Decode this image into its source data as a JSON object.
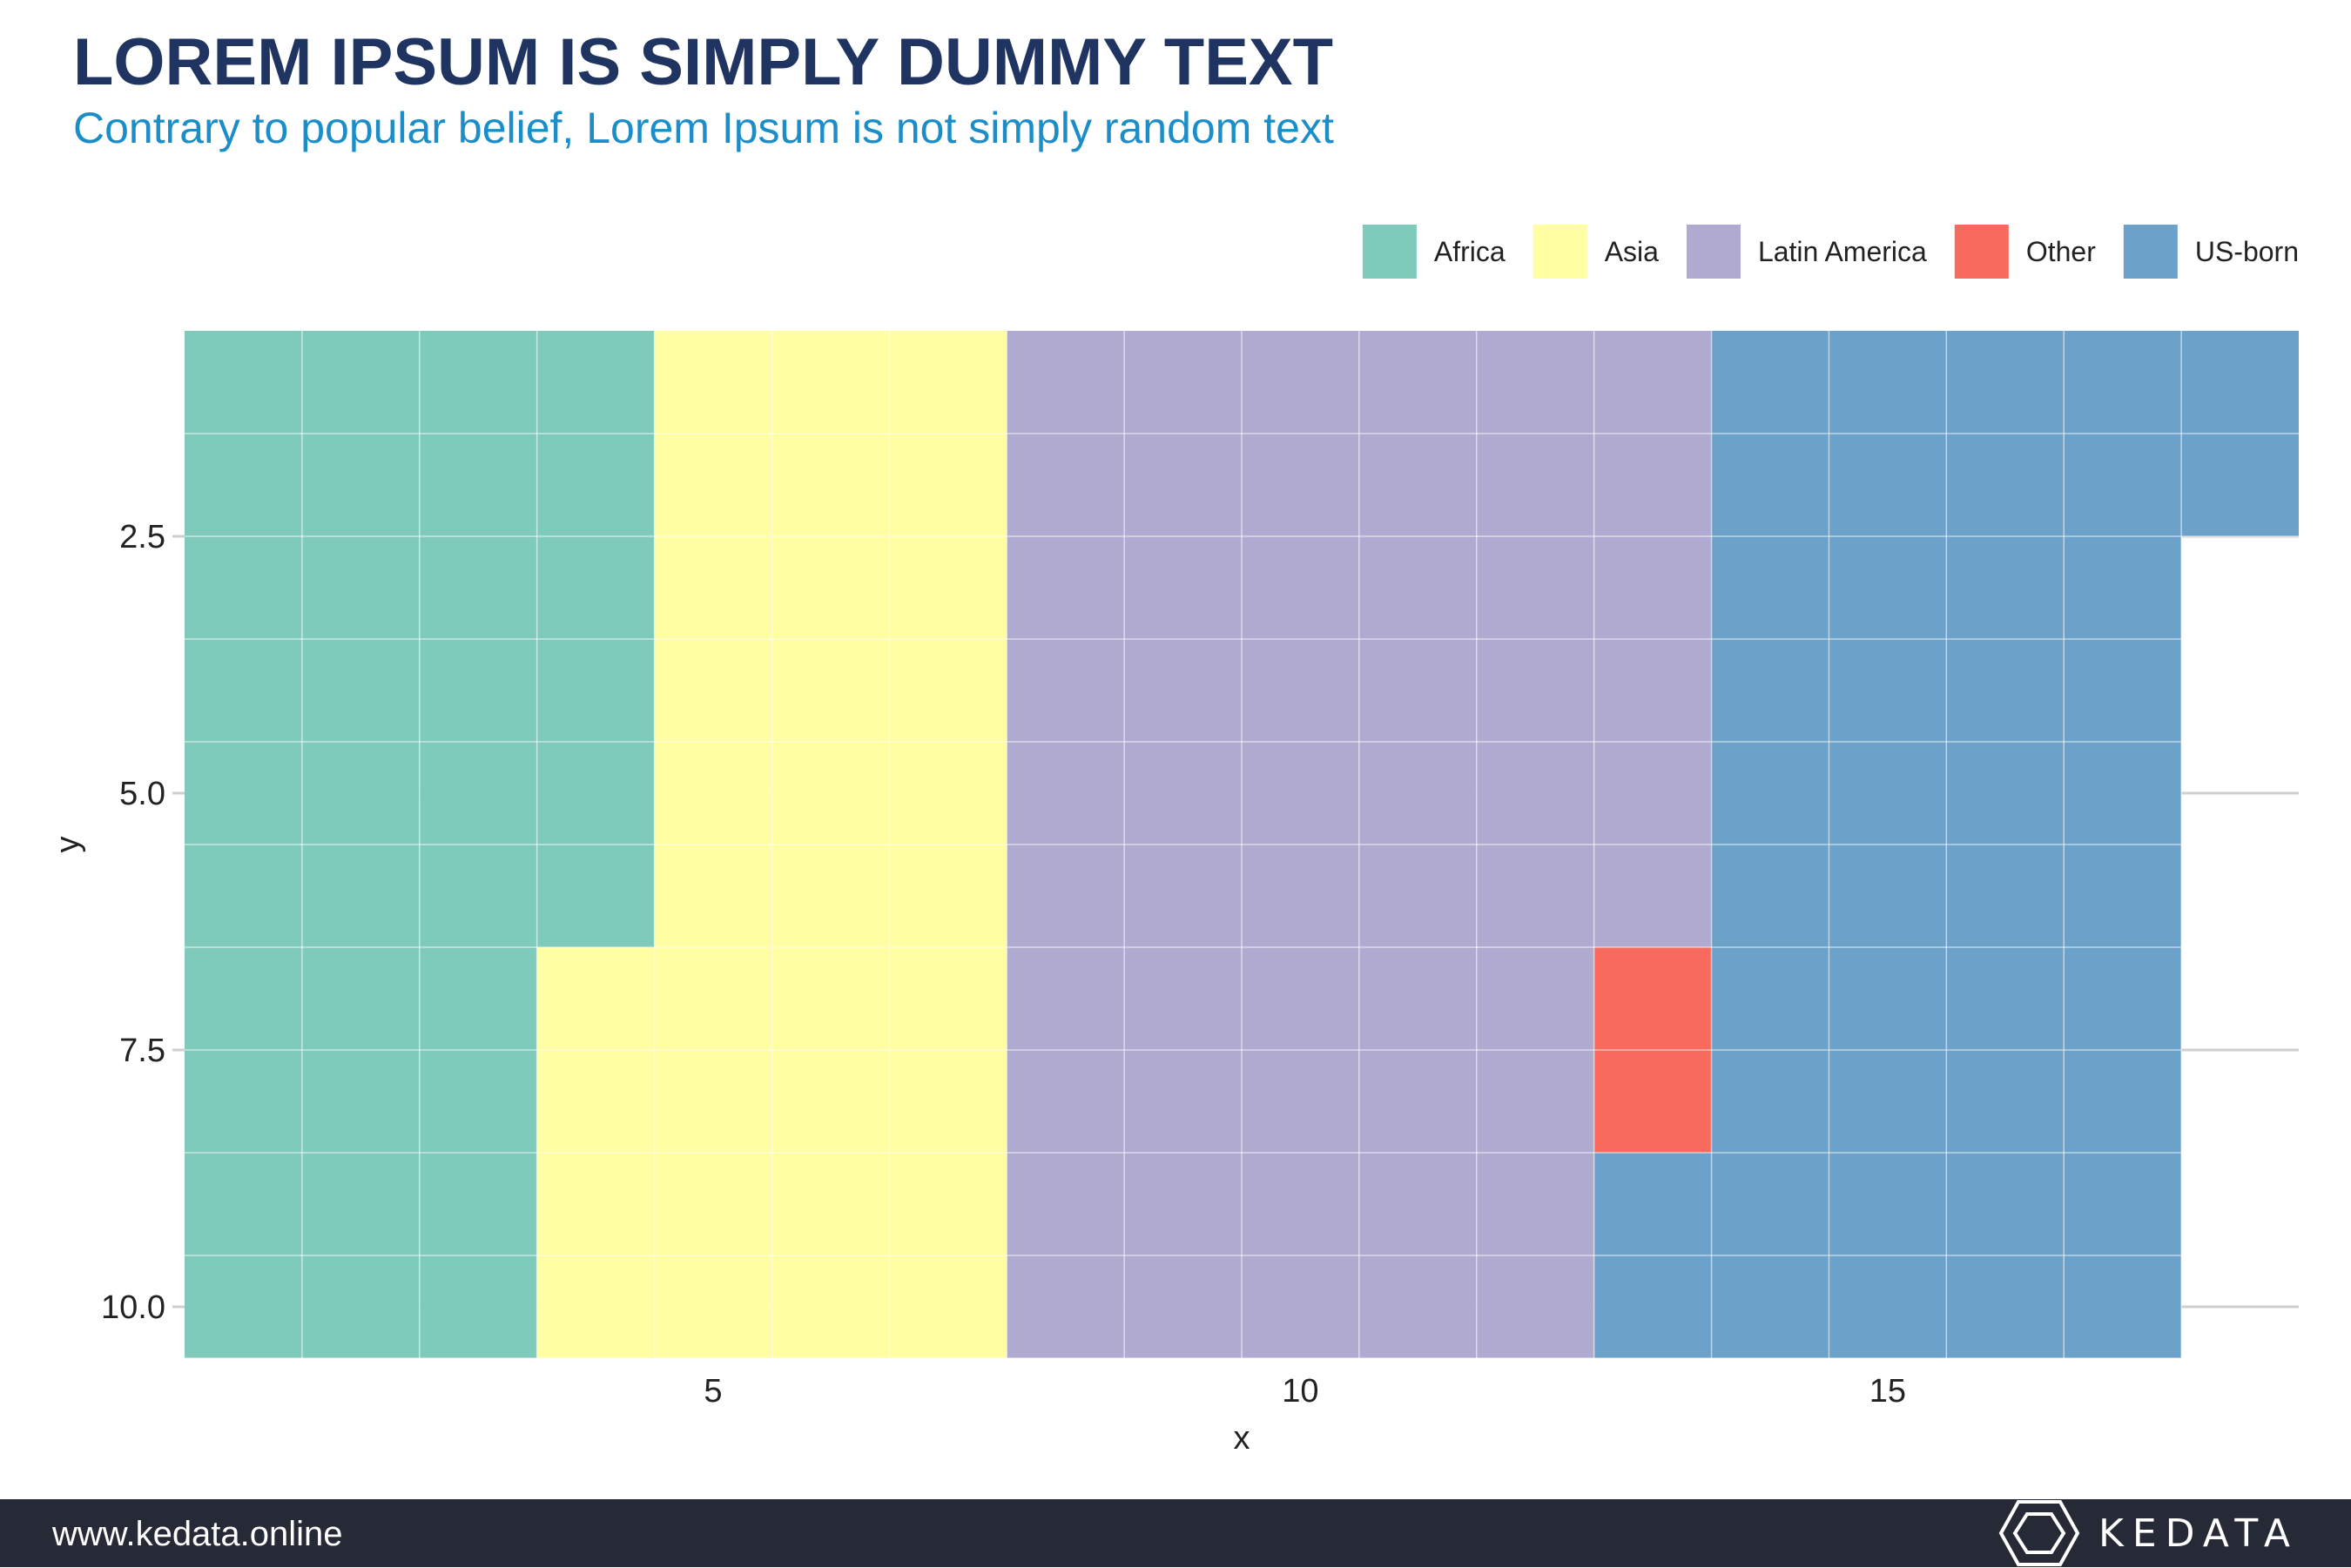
{
  "title": "LOREM IPSUM IS SIMPLY DUMMY TEXT",
  "subtitle": "Contrary to popular belief, Lorem Ipsum is not simply random text",
  "footer": {
    "url": "www.kedata.online",
    "brand": "KEDATA",
    "logo_icon": "hexagon-logo-icon"
  },
  "chart_data": {
    "type": "heatmap",
    "xlabel": "x",
    "ylabel": "y",
    "xlim": [
      0.5,
      18.5
    ],
    "ylim": [
      10.5,
      0.5
    ],
    "y_reversed": true,
    "xticks": [
      5,
      10,
      15
    ],
    "yticks": [
      2.5,
      5.0,
      7.5,
      10.0
    ],
    "ytick_labels": [
      "2.5",
      "5.0",
      "7.5",
      "10.0"
    ],
    "xtick_labels": [
      "5",
      "10",
      "15"
    ],
    "grid": true,
    "legend_position": "top-right",
    "series": [
      {
        "name": "Africa",
        "color": "#7fcbbb"
      },
      {
        "name": "Asia",
        "color": "#fffea3"
      },
      {
        "name": "Latin America",
        "color": "#b0aad0"
      },
      {
        "name": "Other",
        "color": "#f86a5e"
      },
      {
        "name": "US-born",
        "color": "#6ca1ca"
      }
    ],
    "columns": [
      {
        "x": 1,
        "rows": [
          1,
          10
        ],
        "category": "Africa"
      },
      {
        "x": 2,
        "rows": [
          1,
          10
        ],
        "category": "Africa"
      },
      {
        "x": 3,
        "rows": [
          1,
          10
        ],
        "category": "Africa"
      },
      {
        "x": 4,
        "rows": [
          1,
          6
        ],
        "category": "Africa"
      },
      {
        "x": 4,
        "rows": [
          7,
          10
        ],
        "category": "Asia"
      },
      {
        "x": 5,
        "rows": [
          1,
          10
        ],
        "category": "Asia"
      },
      {
        "x": 6,
        "rows": [
          1,
          10
        ],
        "category": "Asia"
      },
      {
        "x": 7,
        "rows": [
          1,
          10
        ],
        "category": "Asia"
      },
      {
        "x": 8,
        "rows": [
          1,
          10
        ],
        "category": "Latin America"
      },
      {
        "x": 9,
        "rows": [
          1,
          10
        ],
        "category": "Latin America"
      },
      {
        "x": 10,
        "rows": [
          1,
          10
        ],
        "category": "Latin America"
      },
      {
        "x": 11,
        "rows": [
          1,
          10
        ],
        "category": "Latin America"
      },
      {
        "x": 12,
        "rows": [
          1,
          10
        ],
        "category": "Latin America"
      },
      {
        "x": 13,
        "rows": [
          1,
          6
        ],
        "category": "Latin America"
      },
      {
        "x": 13,
        "rows": [
          7,
          8
        ],
        "category": "Other"
      },
      {
        "x": 13,
        "rows": [
          9,
          10
        ],
        "category": "US-born"
      },
      {
        "x": 14,
        "rows": [
          1,
          10
        ],
        "category": "US-born"
      },
      {
        "x": 15,
        "rows": [
          1,
          10
        ],
        "category": "US-born"
      },
      {
        "x": 16,
        "rows": [
          1,
          10
        ],
        "category": "US-born"
      },
      {
        "x": 17,
        "rows": [
          1,
          10
        ],
        "category": "US-born"
      },
      {
        "x": 18,
        "rows": [
          1,
          2
        ],
        "category": "US-born"
      }
    ]
  }
}
